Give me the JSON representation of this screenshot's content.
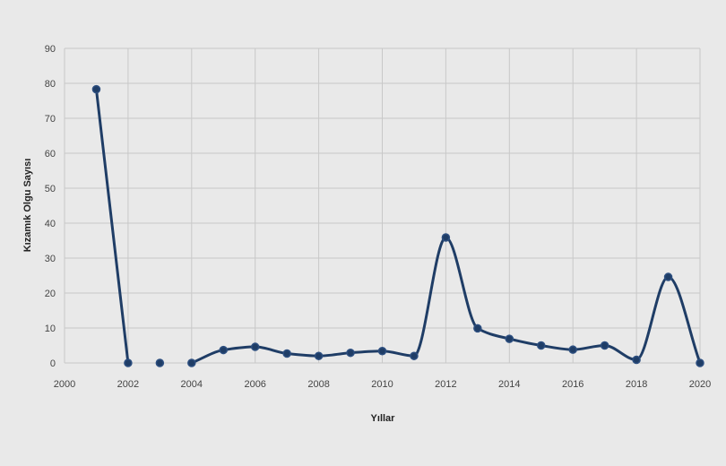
{
  "chart_data": {
    "type": "line",
    "xlabel": "Yıllar",
    "ylabel": "Kızamık Olgu Sayısı",
    "xlim": [
      2000,
      2020
    ],
    "ylim": [
      0,
      90
    ],
    "xticks": [
      2000,
      2002,
      2004,
      2006,
      2008,
      2010,
      2012,
      2014,
      2016,
      2018,
      2020
    ],
    "yticks": [
      0,
      10,
      20,
      30,
      40,
      50,
      60,
      70,
      80,
      90
    ],
    "grid": true,
    "series": [
      {
        "segments": [
          [
            [
              2001,
              78.3
            ],
            [
              2002,
              0
            ]
          ],
          [
            [
              2003,
              0
            ]
          ],
          [
            [
              2004,
              0
            ],
            [
              2005,
              3.7
            ],
            [
              2006,
              4.6
            ],
            [
              2007,
              2.7
            ],
            [
              2008,
              2.0
            ],
            [
              2009,
              2.9
            ],
            [
              2010,
              3.4
            ],
            [
              2011,
              2.0
            ],
            [
              2012,
              35.9
            ],
            [
              2013,
              9.9
            ],
            [
              2014,
              6.9
            ],
            [
              2015,
              5.0
            ],
            [
              2016,
              3.8
            ],
            [
              2017,
              5.0
            ],
            [
              2018,
              0.9
            ],
            [
              2019,
              24.6
            ],
            [
              2020,
              0
            ]
          ]
        ],
        "color": "#1f3d66"
      }
    ]
  }
}
